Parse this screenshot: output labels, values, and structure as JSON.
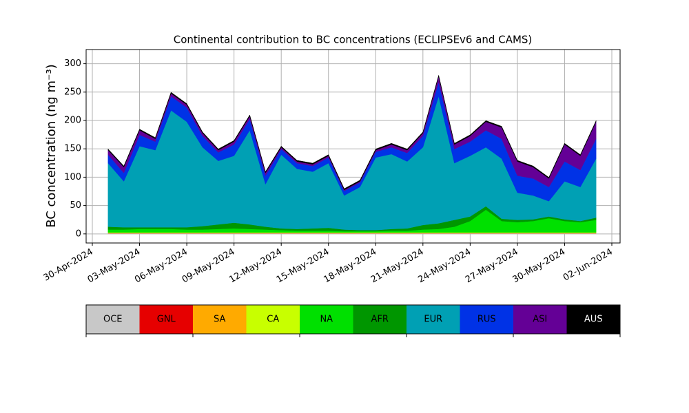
{
  "chart_data": {
    "type": "stacked_area",
    "title": "Continental contribution to BC concentrations (ECLIPSEv6 and CAMS)",
    "ylabel": "BC concentration (ng m⁻³)",
    "x": [
      "2024-05-01",
      "2024-05-02",
      "2024-05-03",
      "2024-05-04",
      "2024-05-05",
      "2024-05-06",
      "2024-05-07",
      "2024-05-08",
      "2024-05-09",
      "2024-05-10",
      "2024-05-11",
      "2024-05-12",
      "2024-05-13",
      "2024-05-14",
      "2024-05-15",
      "2024-05-16",
      "2024-05-17",
      "2024-05-18",
      "2024-05-19",
      "2024-05-20",
      "2024-05-21",
      "2024-05-22",
      "2024-05-23",
      "2024-05-24",
      "2024-05-25",
      "2024-05-26",
      "2024-05-27",
      "2024-05-28",
      "2024-05-29",
      "2024-05-30",
      "2024-05-31",
      "2024-06-01"
    ],
    "series": [
      {
        "name": "OCE",
        "color": "#c8c8c8",
        "values": [
          1,
          1,
          1,
          1,
          1,
          1,
          1,
          1,
          1,
          1,
          1,
          1,
          1,
          1,
          1,
          1,
          1,
          1,
          1,
          1,
          1,
          1,
          1,
          1,
          1,
          1,
          1,
          1,
          1,
          1,
          1,
          1
        ]
      },
      {
        "name": "GNL",
        "color": "#e60000",
        "values": [
          0.2,
          0.2,
          0.2,
          0.2,
          0.2,
          0.2,
          0.2,
          0.2,
          0.2,
          0.2,
          0.2,
          0.2,
          0.2,
          0.2,
          0.2,
          0.2,
          0.2,
          0.2,
          0.2,
          0.2,
          0.2,
          0.2,
          0.2,
          0.2,
          0.2,
          0.2,
          0.2,
          0.2,
          0.2,
          0.2,
          0.2,
          0.2
        ]
      },
      {
        "name": "SA",
        "color": "#ffaa00",
        "values": [
          0.5,
          0.5,
          0.5,
          0.5,
          0.5,
          0.5,
          0.5,
          0.5,
          0.5,
          0.5,
          0.5,
          0.5,
          0.5,
          0.5,
          0.5,
          0.5,
          0.5,
          0.5,
          0.5,
          0.5,
          0.5,
          0.5,
          0.5,
          0.5,
          0.5,
          0.5,
          0.5,
          0.5,
          0.5,
          0.5,
          0.5,
          0.5
        ]
      },
      {
        "name": "CA",
        "color": "#c8ff00",
        "values": [
          1,
          1,
          1,
          1,
          1,
          1,
          1,
          1,
          1,
          1,
          1,
          1,
          1,
          1,
          1,
          1,
          1,
          1,
          1,
          1,
          1,
          1,
          1,
          1,
          1,
          1,
          1,
          1,
          1,
          1,
          1,
          1
        ]
      },
      {
        "name": "NA",
        "color": "#00e000",
        "values": [
          5,
          5,
          6,
          6,
          6,
          5,
          5,
          6,
          7,
          6,
          5,
          4,
          3,
          3,
          3,
          2,
          2,
          2,
          3,
          3,
          5,
          6,
          10,
          20,
          40,
          20,
          18,
          20,
          25,
          20,
          18,
          22
        ]
      },
      {
        "name": "AFR",
        "color": "#009600",
        "values": [
          5,
          4,
          3,
          3,
          3,
          4,
          6,
          8,
          10,
          8,
          5,
          3,
          3,
          4,
          5,
          3,
          2,
          2,
          3,
          4,
          8,
          10,
          12,
          8,
          6,
          4,
          4,
          3,
          3,
          3,
          2,
          4
        ]
      },
      {
        "name": "EUR",
        "color": "#00a0b4",
        "values": [
          112,
          81,
          143,
          136,
          206,
          186,
          139,
          112,
          118,
          166,
          75,
          130,
          106,
          100,
          114,
          60,
          76,
          128,
          132,
          118,
          137,
          224,
          100,
          107,
          104,
          106,
          48,
          42,
          27,
          67,
          60,
          104
        ]
      },
      {
        "name": "RUS",
        "color": "#0032e6",
        "values": [
          15,
          15,
          20,
          15,
          25,
          25,
          20,
          15,
          20,
          20,
          15,
          10,
          10,
          10,
          10,
          8,
          8,
          10,
          12,
          15,
          20,
          25,
          25,
          25,
          30,
          35,
          30,
          30,
          25,
          35,
          30,
          35
        ]
      },
      {
        "name": "ASI",
        "color": "#640096",
        "values": [
          8,
          10,
          8,
          5,
          5,
          5,
          5,
          4,
          5,
          5,
          5,
          3,
          3,
          3,
          3,
          2,
          2,
          3,
          5,
          5,
          5,
          10,
          8,
          10,
          15,
          20,
          25,
          20,
          15,
          30,
          25,
          30
        ]
      },
      {
        "name": "AUS",
        "color": "#000000",
        "values": [
          2,
          2,
          2,
          2,
          2,
          2,
          2,
          2,
          2,
          2,
          2,
          2,
          2,
          2,
          2,
          2,
          2,
          2,
          2,
          2,
          2,
          2,
          2,
          2,
          2,
          2,
          2,
          2,
          2,
          2,
          2,
          2
        ]
      }
    ],
    "xlim": [
      "2024-04-30",
      "2024-06-02"
    ],
    "xticks": [
      {
        "value": "2024-04-30",
        "label": "30-Apr-2024"
      },
      {
        "value": "2024-05-03",
        "label": "03-May-2024"
      },
      {
        "value": "2024-05-06",
        "label": "06-May-2024"
      },
      {
        "value": "2024-05-09",
        "label": "09-May-2024"
      },
      {
        "value": "2024-05-12",
        "label": "12-May-2024"
      },
      {
        "value": "2024-05-15",
        "label": "15-May-2024"
      },
      {
        "value": "2024-05-18",
        "label": "18-May-2024"
      },
      {
        "value": "2024-05-21",
        "label": "21-May-2024"
      },
      {
        "value": "2024-05-24",
        "label": "24-May-2024"
      },
      {
        "value": "2024-05-27",
        "label": "27-May-2024"
      },
      {
        "value": "2024-05-30",
        "label": "30-May-2024"
      },
      {
        "value": "2024-06-02",
        "label": "02-Jun-2024"
      }
    ],
    "ylim": [
      -16,
      325
    ],
    "yticks": [
      0,
      50,
      100,
      150,
      200,
      250,
      300
    ],
    "grid": true
  }
}
